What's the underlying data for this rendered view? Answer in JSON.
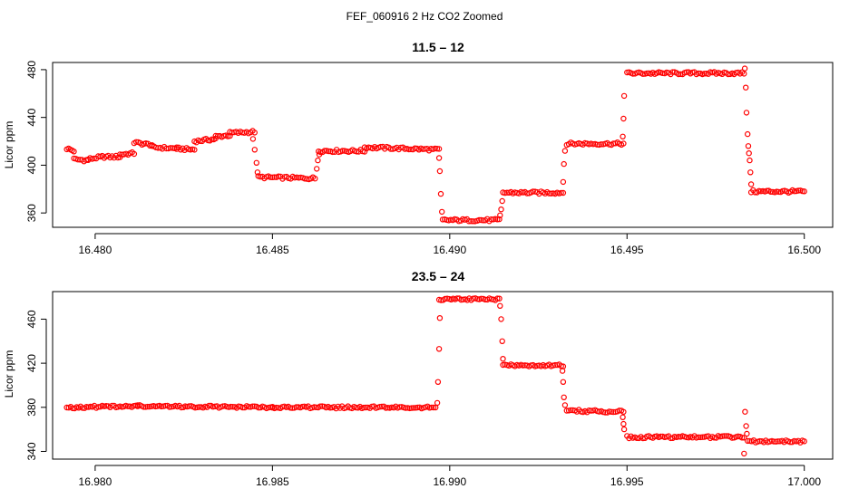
{
  "figure": {
    "title": "FEF_060916  2 Hz CO2 Zoomed"
  },
  "colors": {
    "points": "#ff0000",
    "axes": "#000000",
    "background": "#ffffff"
  },
  "chart_data": [
    {
      "type": "scatter",
      "title": "11.5 – 12",
      "xlabel": "",
      "ylabel": "Licor ppm",
      "xlim": [
        16.4788,
        16.5008
      ],
      "ylim": [
        348,
        486
      ],
      "xticks": [
        16.48,
        16.485,
        16.49,
        16.495,
        16.5
      ],
      "xtick_labels": [
        "16.480",
        "16.485",
        "16.490",
        "16.495",
        "16.500"
      ],
      "yticks": [
        360,
        400,
        440,
        480
      ],
      "ytick_labels": [
        "360",
        "400",
        "440",
        "480"
      ],
      "grid": false,
      "marker": "open-circle",
      "series": [
        {
          "segments": [
            {
              "x": [
                16.4792,
                16.4794
              ],
              "y": [
                414,
                412
              ]
            },
            {
              "x": [
                16.4794,
                16.4798
              ],
              "y": [
                405,
                404
              ]
            },
            {
              "x": [
                16.4798,
                16.4802
              ],
              "y": [
                405,
                407
              ]
            },
            {
              "x": [
                16.4802,
                16.4807
              ],
              "y": [
                407,
                407
              ]
            },
            {
              "x": [
                16.4807,
                16.4811
              ],
              "y": [
                409,
                410
              ]
            },
            {
              "x": [
                16.4811,
                16.4816
              ],
              "y": [
                419,
                417
              ]
            },
            {
              "x": [
                16.4816,
                16.4823
              ],
              "y": [
                415,
                414
              ]
            },
            {
              "x": [
                16.4823,
                16.4828
              ],
              "y": [
                414,
                413
              ]
            },
            {
              "x": [
                16.4828,
                16.4834
              ],
              "y": [
                420,
                422
              ]
            },
            {
              "x": [
                16.4834,
                16.4838
              ],
              "y": [
                424,
                425
              ]
            },
            {
              "x": [
                16.4838,
                16.4845
              ],
              "y": [
                427,
                428
              ]
            },
            {
              "x": [
                16.4846,
                16.4862
              ],
              "y": [
                390,
                389
              ]
            },
            {
              "x": [
                16.4863,
                16.4876
              ],
              "y": [
                412,
                412
              ]
            },
            {
              "x": [
                16.4876,
                16.4897
              ],
              "y": [
                415,
                413
              ]
            },
            {
              "x": [
                16.4898,
                16.4914
              ],
              "y": [
                354,
                354
              ]
            },
            {
              "x": [
                16.4915,
                16.4932
              ],
              "y": [
                377,
                377
              ]
            },
            {
              "x": [
                16.4933,
                16.4949
              ],
              "y": [
                418,
                418
              ]
            },
            {
              "x": [
                16.495,
                16.4983
              ],
              "y": [
                477,
                477
              ]
            },
            {
              "x": [
                16.4985,
                16.5
              ],
              "y": [
                378,
                378
              ]
            }
          ],
          "points": [
            {
              "x": 16.48445,
              "y": 422
            },
            {
              "x": 16.4845,
              "y": 413
            },
            {
              "x": 16.48455,
              "y": 402
            },
            {
              "x": 16.48458,
              "y": 394
            },
            {
              "x": 16.48625,
              "y": 397
            },
            {
              "x": 16.48628,
              "y": 404
            },
            {
              "x": 16.48632,
              "y": 409
            },
            {
              "x": 16.4897,
              "y": 406
            },
            {
              "x": 16.48972,
              "y": 395
            },
            {
              "x": 16.48975,
              "y": 376
            },
            {
              "x": 16.48978,
              "y": 361
            },
            {
              "x": 16.49142,
              "y": 358
            },
            {
              "x": 16.49145,
              "y": 363
            },
            {
              "x": 16.49148,
              "y": 370
            },
            {
              "x": 16.4932,
              "y": 386
            },
            {
              "x": 16.49322,
              "y": 401
            },
            {
              "x": 16.49325,
              "y": 412
            },
            {
              "x": 16.49488,
              "y": 424
            },
            {
              "x": 16.4949,
              "y": 439
            },
            {
              "x": 16.49492,
              "y": 458
            },
            {
              "x": 16.49832,
              "y": 481
            },
            {
              "x": 16.49835,
              "y": 465
            },
            {
              "x": 16.49837,
              "y": 444
            },
            {
              "x": 16.4984,
              "y": 426
            },
            {
              "x": 16.49842,
              "y": 416
            },
            {
              "x": 16.49844,
              "y": 410
            },
            {
              "x": 16.49846,
              "y": 404
            },
            {
              "x": 16.49848,
              "y": 394
            },
            {
              "x": 16.4985,
              "y": 384
            }
          ]
        }
      ]
    },
    {
      "type": "scatter",
      "title": "23.5 – 24",
      "xlabel": "",
      "ylabel": "Licor ppm",
      "xlim": [
        16.9788,
        17.0008
      ],
      "ylim": [
        333,
        485
      ],
      "xticks": [
        16.98,
        16.985,
        16.99,
        16.995,
        17.0
      ],
      "xtick_labels": [
        "16.980",
        "16.985",
        "16.990",
        "16.995",
        "17.000"
      ],
      "yticks": [
        340,
        380,
        420,
        460
      ],
      "ytick_labels": [
        "340",
        "380",
        "420",
        "460"
      ],
      "grid": false,
      "marker": "open-circle",
      "series": [
        {
          "segments": [
            {
              "x": [
                16.9792,
                16.9812
              ],
              "y": [
                380,
                381
              ]
            },
            {
              "x": [
                16.9812,
                16.985
              ],
              "y": [
                381,
                380
              ]
            },
            {
              "x": [
                16.985,
                16.9896
              ],
              "y": [
                380,
                380
              ]
            },
            {
              "x": [
                16.9897,
                16.9914
              ],
              "y": [
                478,
                478
              ]
            },
            {
              "x": [
                16.9915,
                16.9932
              ],
              "y": [
                418,
                418
              ]
            },
            {
              "x": [
                16.9933,
                16.9949
              ],
              "y": [
                377,
                376
              ]
            },
            {
              "x": [
                16.995,
                16.9983
              ],
              "y": [
                353,
                353
              ]
            },
            {
              "x": [
                16.9984,
                17.0
              ],
              "y": [
                349,
                349
              ]
            }
          ],
          "points": [
            {
              "x": 16.98965,
              "y": 384
            },
            {
              "x": 16.98967,
              "y": 403
            },
            {
              "x": 16.9897,
              "y": 433
            },
            {
              "x": 16.98972,
              "y": 461
            },
            {
              "x": 16.99142,
              "y": 472
            },
            {
              "x": 16.99145,
              "y": 460
            },
            {
              "x": 16.99148,
              "y": 440
            },
            {
              "x": 16.9915,
              "y": 424
            },
            {
              "x": 16.99318,
              "y": 413
            },
            {
              "x": 16.9932,
              "y": 403
            },
            {
              "x": 16.99322,
              "y": 389
            },
            {
              "x": 16.99325,
              "y": 382
            },
            {
              "x": 16.99488,
              "y": 371
            },
            {
              "x": 16.9949,
              "y": 365
            },
            {
              "x": 16.99492,
              "y": 360
            },
            {
              "x": 16.9983,
              "y": 338
            },
            {
              "x": 16.99833,
              "y": 376
            },
            {
              "x": 16.99836,
              "y": 363
            },
            {
              "x": 16.99838,
              "y": 356
            }
          ]
        }
      ]
    }
  ]
}
